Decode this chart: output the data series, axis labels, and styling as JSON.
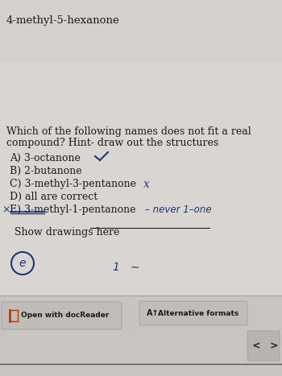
{
  "title": "4-methyl-5-hexanone",
  "question_line1": "Which of the following names does not fit a real",
  "question_line2": "compound? Hint- draw out the structures",
  "options": [
    "A) 3-octanone",
    "B) 2-butanone",
    "C) 3-methyl-3-pentanone",
    "D) all are correct",
    "E) 3-methyl-1-pentanone"
  ],
  "bg_color_top": "#d8d5d0",
  "bg_color_main": "#dddad5",
  "text_color": "#1a1a1a",
  "handwritten_color": "#1e3580",
  "title_fontsize": 9.5,
  "question_fontsize": 9.0,
  "option_fontsize": 9.0,
  "bottom_left_label": "Open with docReader",
  "bottom_right_label": "Alternative formats",
  "show_drawings_text": "Show drawings here"
}
